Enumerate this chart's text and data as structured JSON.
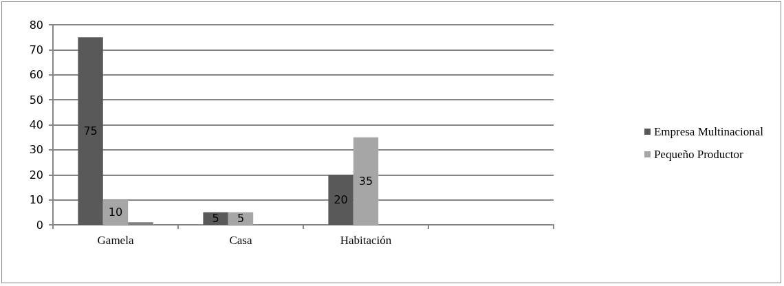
{
  "chart_data": {
    "type": "bar",
    "categories": [
      "Gamela",
      "Casa",
      "Habitación",
      null
    ],
    "series": [
      {
        "name": "Empresa Multinacional",
        "color": "#595959",
        "values": [
          75,
          5,
          20,
          null
        ],
        "value_labels": [
          "75",
          "5",
          "20",
          null
        ]
      },
      {
        "name": "Pequeño Productor",
        "color": "#a6a6a6",
        "values": [
          10,
          5,
          35,
          null
        ],
        "value_labels": [
          "10",
          "5",
          "35",
          null
        ]
      },
      {
        "color": "#7f7f7f",
        "values": [
          1,
          null,
          null,
          null
        ],
        "value_labels": [
          null,
          null,
          null,
          null
        ]
      }
    ],
    "ylim": [
      0,
      80
    ],
    "yticks": [
      0,
      10,
      20,
      30,
      40,
      50,
      60,
      70,
      80
    ],
    "grid": "y",
    "legend": "right"
  }
}
